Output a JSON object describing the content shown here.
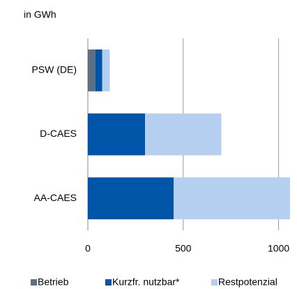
{
  "chart_data": {
    "type": "barh_stacked",
    "subtitle": "in GWh",
    "categories": [
      "PSW (DE)",
      "D-CAES",
      "AA-CAES"
    ],
    "series": [
      {
        "name": "Betrieb",
        "color": "#5b7085",
        "values": [
          40,
          0,
          0
        ]
      },
      {
        "name": "Kurzfr. nutzbar*",
        "color": "#0055a8",
        "values": [
          35,
          300,
          450
        ]
      },
      {
        "name": "Restpotenzial",
        "color": "#b4cfef",
        "values": [
          40,
          400,
          610
        ]
      }
    ],
    "xlim": [
      0,
      1060
    ],
    "xticks": [
      0,
      500,
      1000
    ],
    "grid": true,
    "legend": "bottom"
  }
}
